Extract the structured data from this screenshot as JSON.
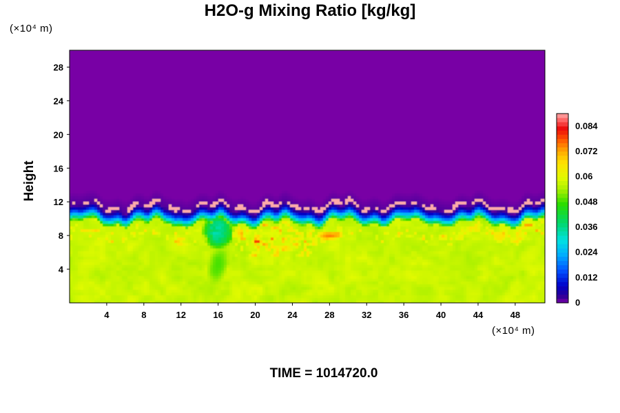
{
  "chart_data": {
    "type": "heatmap",
    "title": "H2O-g Mixing Ratio [kg/kg]",
    "ylabel": "Height",
    "x_unit": "(×10⁴ m)",
    "y_unit": "(×10⁴ m)",
    "footer": "TIME = 1014720.0",
    "xlim": [
      0,
      51.2
    ],
    "ylim": [
      0,
      30
    ],
    "x_ticks": [
      4,
      8,
      12,
      16,
      20,
      24,
      28,
      32,
      36,
      40,
      44,
      48
    ],
    "y_ticks": [
      4,
      8,
      12,
      16,
      20,
      24,
      28
    ],
    "colorbar": {
      "ticks": [
        0,
        0.012,
        0.024,
        0.036,
        0.048,
        0.06,
        0.072,
        0.084
      ],
      "tick_labels": [
        "0",
        "0.012",
        "0.024",
        "0.036",
        "0.048",
        "0.06",
        "0.072",
        "0.084"
      ],
      "range": [
        0,
        0.09
      ],
      "levels": 45
    },
    "field_summary": {
      "moist_layer_top_height": 9.5,
      "boundary_transition_top_height": 11,
      "value_above_layer": 0,
      "typical_value_in_layer": 0.057,
      "local_maximum": {
        "x": 28,
        "y": 8,
        "value": 0.075
      },
      "moist_plume_region": {
        "x": [
          14,
          18
        ],
        "y": [
          5,
          10
        ],
        "value": 0.03
      }
    }
  }
}
